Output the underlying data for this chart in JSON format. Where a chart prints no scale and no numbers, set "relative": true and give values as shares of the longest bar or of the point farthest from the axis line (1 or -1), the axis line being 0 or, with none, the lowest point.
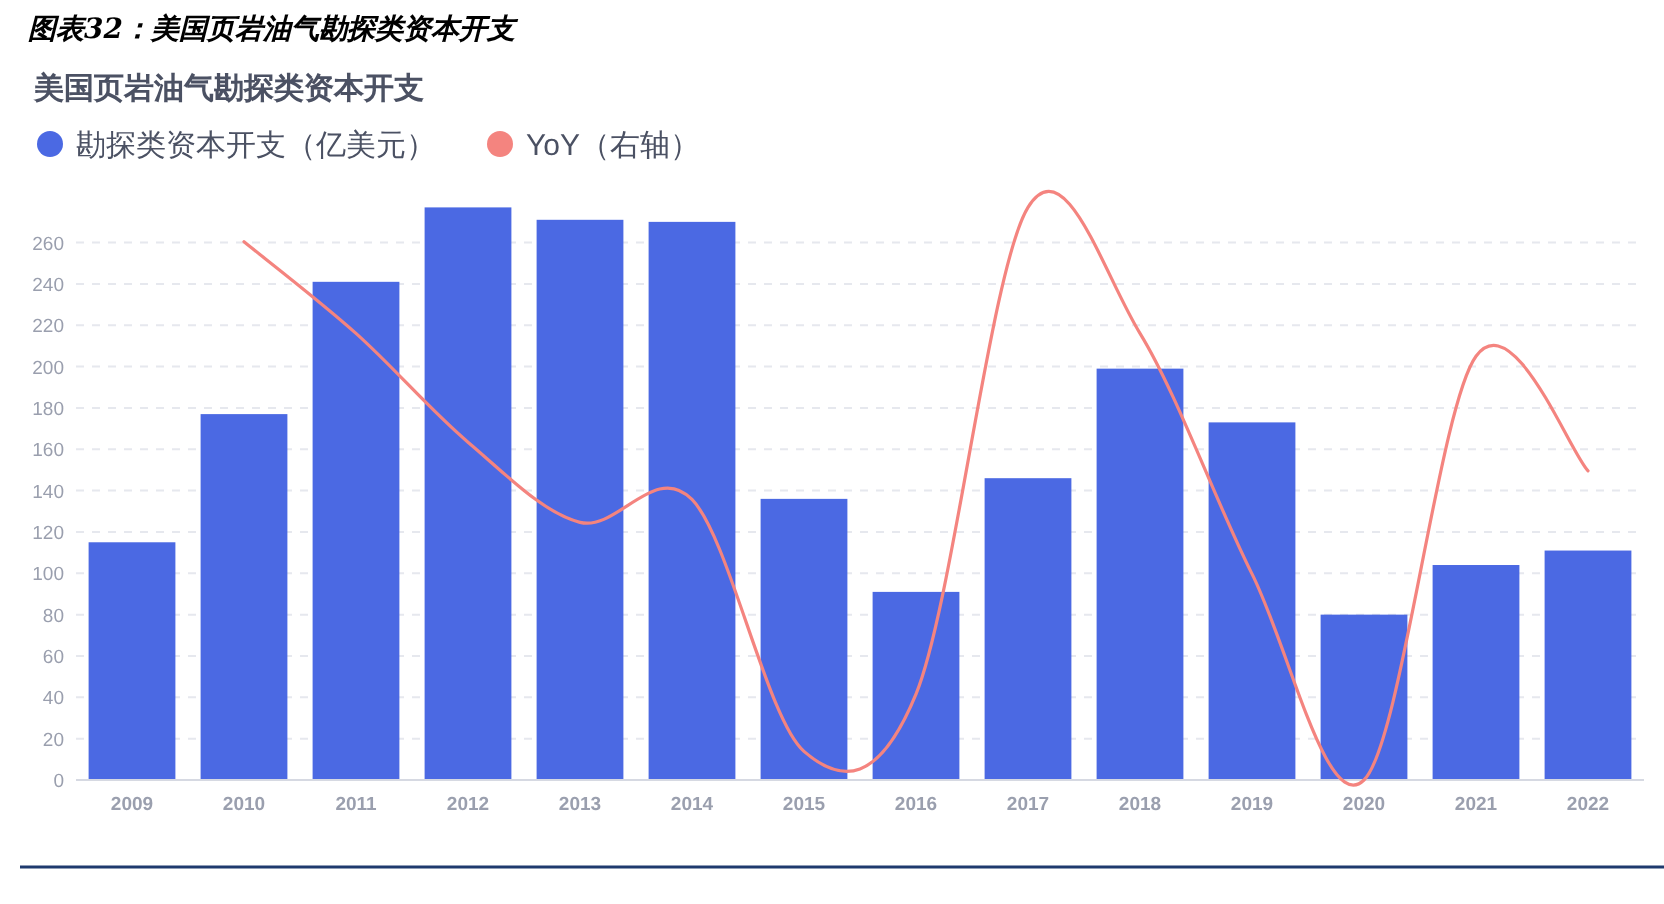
{
  "chart_data": [
    {
      "type": "bar",
      "title": "图表32：美国页岩油气勘探类资本开支",
      "subtitle": "美国页岩油气勘探类资本开支",
      "categories": [
        "2009",
        "2010",
        "2011",
        "2012",
        "2013",
        "2014",
        "2015",
        "2016",
        "2017",
        "2018",
        "2019",
        "2020",
        "2021",
        "2022"
      ],
      "series": [
        {
          "name": "勘探类资本开支（亿美元）",
          "color": "#4b69e3",
          "values": [
            115,
            177,
            241,
            277,
            271,
            270,
            136,
            91,
            146,
            199,
            173,
            80,
            104,
            111
          ]
        }
      ],
      "ylim": [
        0,
        277
      ],
      "yticks": [
        0,
        20,
        40,
        60,
        80,
        100,
        120,
        140,
        160,
        180,
        200,
        220,
        240,
        260
      ],
      "grid": "y",
      "legend": "top left"
    },
    {
      "type": "line",
      "relative": true,
      "categories": [
        null,
        null,
        null,
        null,
        null,
        null,
        null,
        null,
        null,
        null,
        null,
        null,
        null,
        null
      ],
      "series": [
        {
          "name": "YoY（右轴）",
          "color": "#f4847f",
          "values": [
            null,
            0.94,
            0.78,
            0.59,
            0.45,
            0.49,
            0.05,
            0.15,
            1,
            0.78,
            0.36,
            0,
            0.74,
            0.54
          ]
        }
      ],
      "legend": "top left"
    }
  ]
}
